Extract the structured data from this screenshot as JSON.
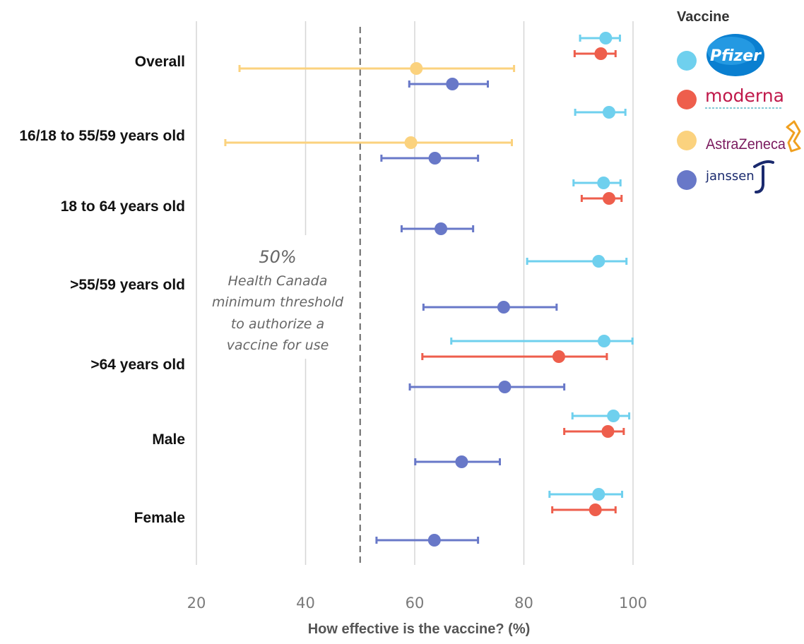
{
  "chart_data": {
    "type": "scatter",
    "xlabel": "How effective is the vaccine? (%)",
    "xlim": [
      20,
      100
    ],
    "xticks": [
      20,
      40,
      60,
      80,
      100
    ],
    "grid": true,
    "legend": {
      "title": "Vaccine",
      "placement": "top-right",
      "entries": [
        {
          "series": "pfizer",
          "logo_text": "Pfizer",
          "color": "#6fd0ee"
        },
        {
          "series": "moderna",
          "logo_text": "moderna",
          "color": "#ee5e4c"
        },
        {
          "series": "astrazeneca",
          "logo_text": "AstraZeneca",
          "color": "#fbd27e"
        },
        {
          "series": "janssen",
          "logo_text": "janssen",
          "color": "#6878c8"
        }
      ]
    },
    "threshold": {
      "value": 50,
      "label": "50%",
      "text_lines": [
        "Health Canada",
        "minimum threshold",
        "to authorize a",
        "vaccine for use"
      ]
    },
    "categories": [
      "Overall",
      "16/18 to 55/59 years old",
      "18 to 64 years old",
      ">55/59 years old",
      ">64 years old",
      "Male",
      "Female"
    ],
    "series": [
      {
        "key": "pfizer",
        "color": "#6fd0ee",
        "points": [
          {
            "category": "Overall",
            "value": 95.0,
            "low": 90.3,
            "high": 97.6
          },
          {
            "category": "16/18 to 55/59 years old",
            "value": 95.6,
            "low": 89.4,
            "high": 98.6
          },
          {
            "category": "18 to 64 years old",
            "value": 94.6,
            "low": 89.1,
            "high": 97.7
          },
          {
            "category": ">55/59 years old",
            "value": 93.7,
            "low": 80.6,
            "high": 98.8
          },
          {
            "category": ">64 years old",
            "value": 94.7,
            "low": 66.7,
            "high": 99.9
          },
          {
            "category": "Male",
            "value": 96.4,
            "low": 88.9,
            "high": 99.3
          },
          {
            "category": "Female",
            "value": 93.7,
            "low": 84.7,
            "high": 98.0
          }
        ]
      },
      {
        "key": "moderna",
        "color": "#ee5e4c",
        "points": [
          {
            "category": "Overall",
            "value": 94.1,
            "low": 89.3,
            "high": 96.8
          },
          {
            "category": "18 to 64 years old",
            "value": 95.6,
            "low": 90.6,
            "high": 97.9
          },
          {
            "category": ">64 years old",
            "value": 86.4,
            "low": 61.4,
            "high": 95.2
          },
          {
            "category": "Male",
            "value": 95.4,
            "low": 87.4,
            "high": 98.3
          },
          {
            "category": "Female",
            "value": 93.1,
            "low": 85.2,
            "high": 96.8
          }
        ]
      },
      {
        "key": "astrazeneca",
        "color": "#fbd27e",
        "points": [
          {
            "category": "Overall",
            "value": 60.3,
            "low": 27.9,
            "high": 78.2
          },
          {
            "category": "16/18 to 55/59 years old",
            "value": 59.3,
            "low": 25.3,
            "high": 77.8
          }
        ]
      },
      {
        "key": "janssen",
        "color": "#6878c8",
        "points": [
          {
            "category": "Overall",
            "value": 66.9,
            "low": 59.0,
            "high": 73.4
          },
          {
            "category": "16/18 to 55/59 years old",
            "value": 63.7,
            "low": 53.9,
            "high": 71.6
          },
          {
            "category": "18 to 64 years old",
            "value": 64.8,
            "low": 57.6,
            "high": 70.7
          },
          {
            "category": ">55/59 years old",
            "value": 76.3,
            "low": 61.6,
            "high": 86.0
          },
          {
            "category": ">64 years old",
            "value": 76.5,
            "low": 59.1,
            "high": 87.4
          },
          {
            "category": "Male",
            "value": 68.6,
            "low": 60.1,
            "high": 75.6
          },
          {
            "category": "Female",
            "value": 63.6,
            "low": 53.0,
            "high": 71.6
          }
        ]
      }
    ]
  }
}
